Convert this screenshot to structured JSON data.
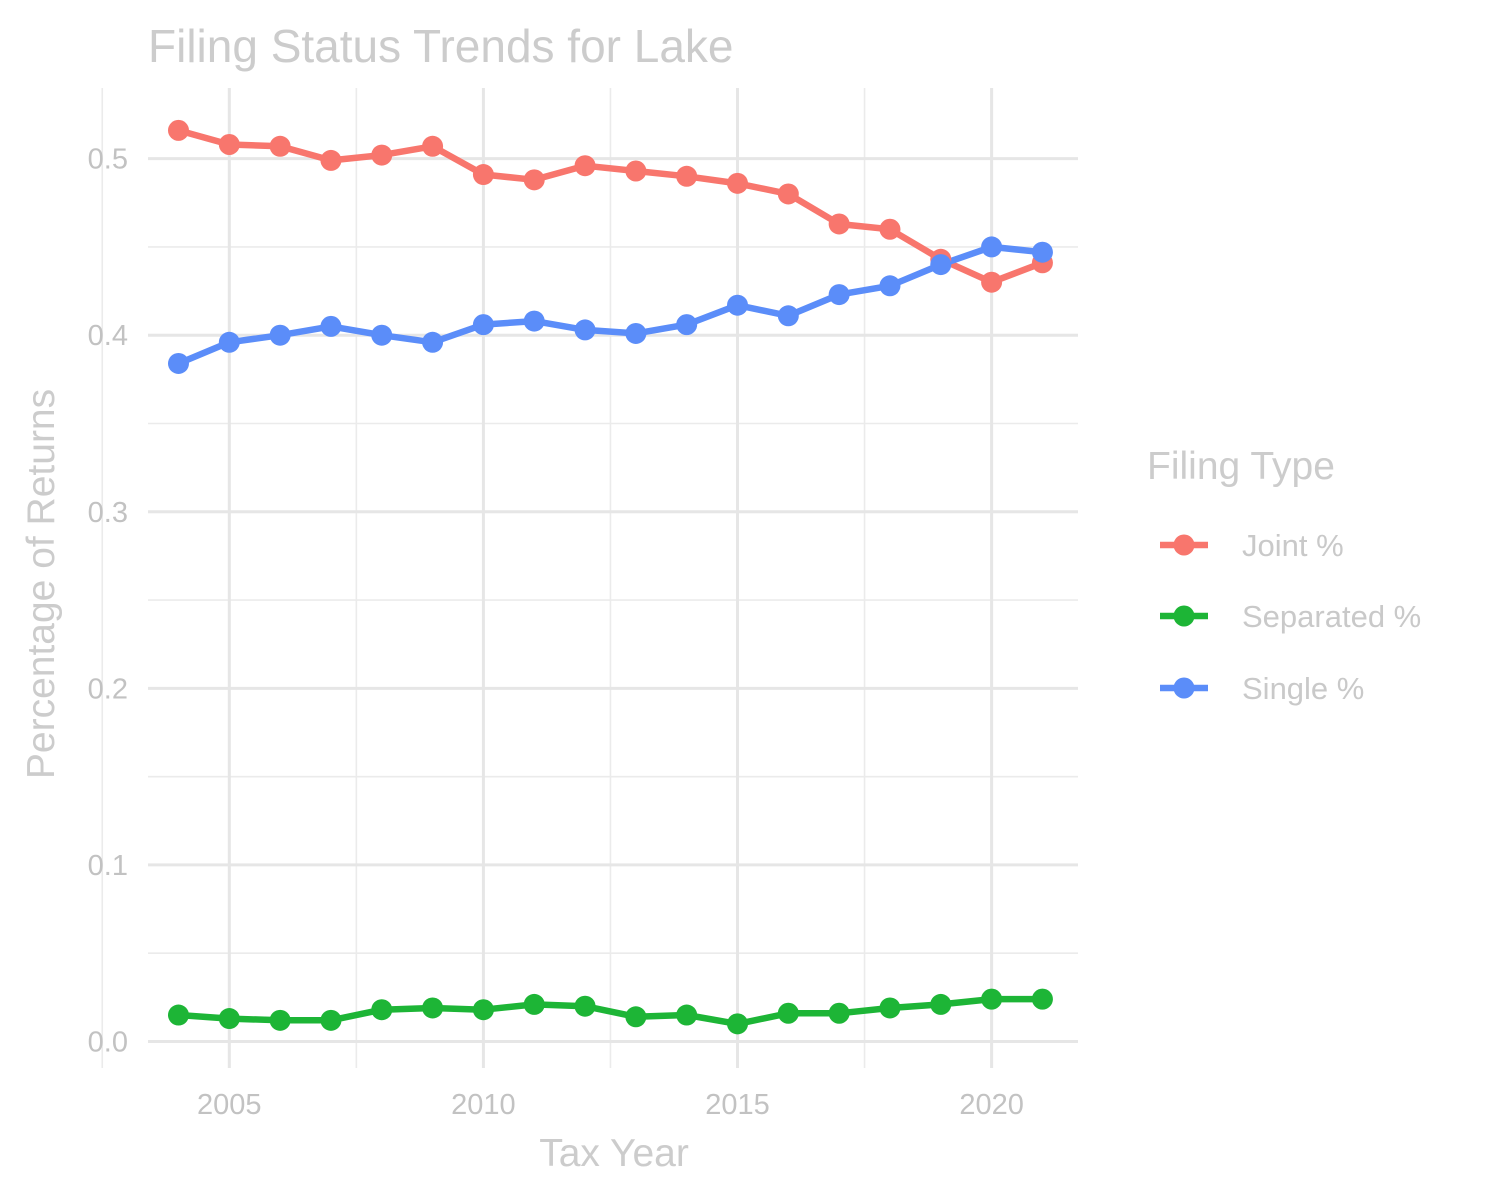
{
  "chart_data": {
    "type": "line",
    "title": "Filing Status Trends for Lake",
    "xlabel": "Tax Year",
    "ylabel": "Percentage of Returns",
    "x": [
      2004,
      2005,
      2006,
      2007,
      2008,
      2009,
      2010,
      2011,
      2012,
      2013,
      2014,
      2015,
      2016,
      2017,
      2018,
      2019,
      2020,
      2021
    ],
    "xlim": [
      2003.4,
      2021.7
    ],
    "ylim": [
      -0.015,
      0.54
    ],
    "x_ticks": [
      2005,
      2010,
      2015,
      2020
    ],
    "x_tick_labels": [
      "2005",
      "2010",
      "2015",
      "2020"
    ],
    "y_ticks": [
      0.0,
      0.1,
      0.2,
      0.3,
      0.4,
      0.5
    ],
    "y_tick_labels": [
      "0.0",
      "0.1",
      "0.2",
      "0.3",
      "0.4",
      "0.5"
    ],
    "grid": true,
    "legend": {
      "title": "Filing Type",
      "position": "right"
    },
    "series": [
      {
        "name": "Joint %",
        "color": "#F8766D",
        "values": [
          0.516,
          0.508,
          0.507,
          0.499,
          0.502,
          0.507,
          0.491,
          0.488,
          0.496,
          0.493,
          0.49,
          0.486,
          0.48,
          0.463,
          0.46,
          0.443,
          0.43,
          0.441
        ]
      },
      {
        "name": "Separated %",
        "color": "#1DB536",
        "values": [
          0.015,
          0.013,
          0.012,
          0.012,
          0.018,
          0.019,
          0.018,
          0.021,
          0.02,
          0.014,
          0.015,
          0.01,
          0.016,
          0.016,
          0.019,
          0.021,
          0.024,
          0.024
        ]
      },
      {
        "name": "Single %",
        "color": "#5B8DF9",
        "values": [
          0.384,
          0.396,
          0.4,
          0.405,
          0.4,
          0.396,
          0.406,
          0.408,
          0.403,
          0.401,
          0.406,
          0.417,
          0.411,
          0.423,
          0.428,
          0.44,
          0.45,
          0.447
        ]
      }
    ]
  }
}
